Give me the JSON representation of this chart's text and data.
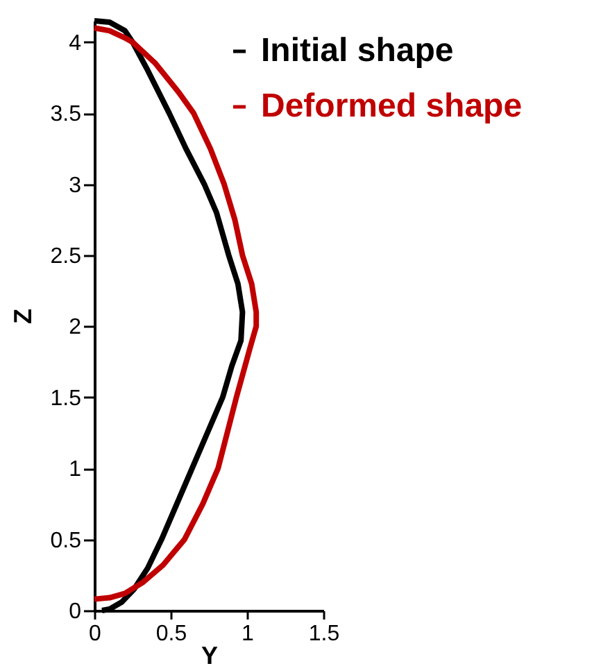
{
  "chart_data": {
    "type": "line",
    "xlabel": "Y",
    "ylabel": "Z",
    "xlim": [
      0,
      1.5
    ],
    "ylim": [
      0,
      4.15
    ],
    "xticks": [
      0,
      0.5,
      1,
      1.5
    ],
    "yticks": [
      0,
      0.5,
      1,
      1.5,
      2,
      2.5,
      3,
      3.5,
      4
    ],
    "legend": "top right",
    "grid": false,
    "marker": "none",
    "line_style": "solid",
    "series": [
      {
        "name": "Initial shape",
        "color": "#000000",
        "x": [
          0,
          0.1,
          0.2,
          0.25,
          0.35,
          0.49,
          0.6,
          0.72,
          0.8,
          0.88,
          0.94,
          0.97,
          0.96,
          0.9,
          0.84,
          0.74,
          0.64,
          0.54,
          0.44,
          0.35,
          0.26,
          0.18,
          0.1,
          0.05
        ],
        "values": [
          4.15,
          4.14,
          4.08,
          4.0,
          3.8,
          3.5,
          3.25,
          3.0,
          2.8,
          2.5,
          2.3,
          2.1,
          1.9,
          1.72,
          1.5,
          1.25,
          1.0,
          0.75,
          0.5,
          0.3,
          0.15,
          0.06,
          0.01,
          0
        ]
      },
      {
        "name": "Deformed shape",
        "color": "#c00000",
        "x": [
          0,
          0.1,
          0.2,
          0.25,
          0.4,
          0.55,
          0.65,
          0.76,
          0.85,
          0.92,
          0.97,
          1.03,
          1.06,
          1.06,
          1.02,
          0.93,
          0.87,
          0.81,
          0.71,
          0.59,
          0.45,
          0.32,
          0.2,
          0.1,
          0
        ],
        "values": [
          4.1,
          4.08,
          4.03,
          4.0,
          3.85,
          3.65,
          3.5,
          3.25,
          3.0,
          2.75,
          2.5,
          2.3,
          2.1,
          2.0,
          1.85,
          1.5,
          1.25,
          1.0,
          0.75,
          0.5,
          0.32,
          0.2,
          0.12,
          0.09,
          0.08
        ]
      }
    ]
  }
}
